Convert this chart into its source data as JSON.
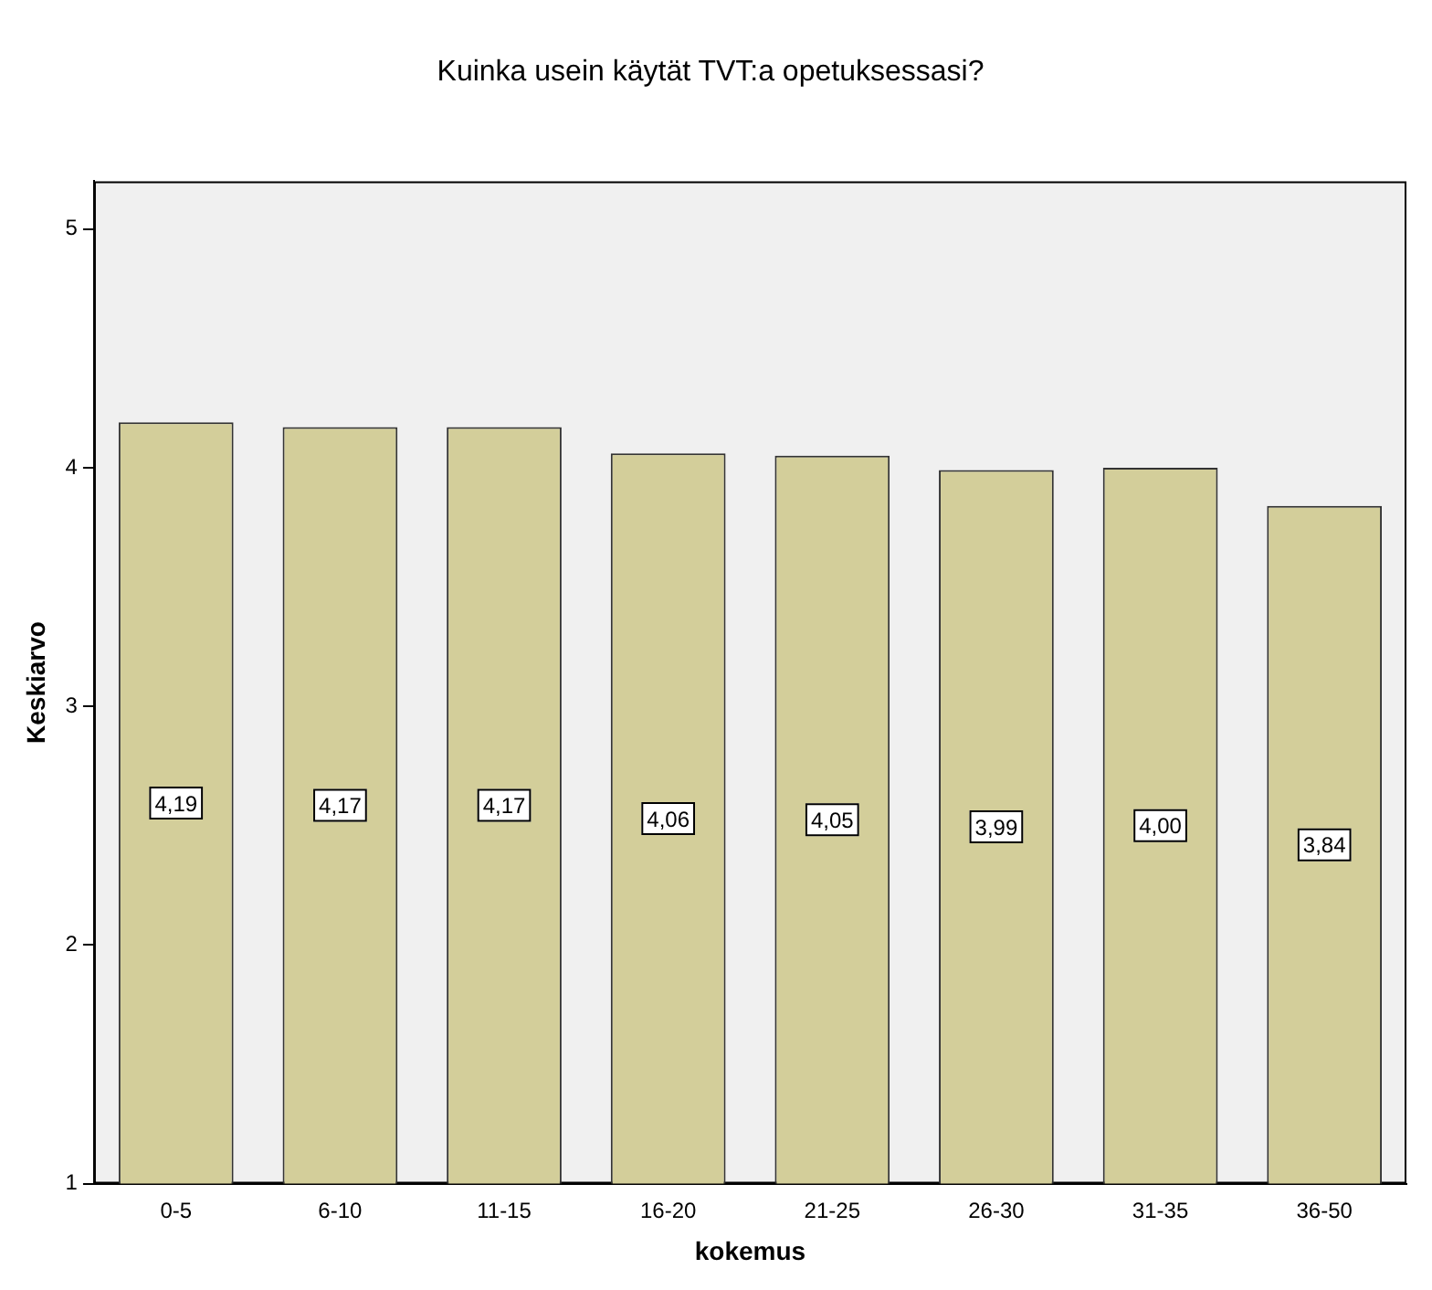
{
  "chart_data": {
    "type": "bar",
    "title": "Kuinka usein käytät TVT:a opetuksessasi?",
    "xlabel": "kokemus",
    "ylabel": "Keskiarvo",
    "categories": [
      "0-5",
      "6-10",
      "11-15",
      "16-20",
      "21-25",
      "26-30",
      "31-35",
      "36-50"
    ],
    "values": [
      4.19,
      4.17,
      4.17,
      4.06,
      4.05,
      3.99,
      4.0,
      3.84
    ],
    "value_labels": [
      "4,19",
      "4,17",
      "4,17",
      "4,06",
      "4,05",
      "3,99",
      "4,00",
      "3,84"
    ],
    "color": "#d3ce9a",
    "ylim": [
      1,
      5.2
    ],
    "yticks": [
      1,
      2,
      3,
      4,
      5
    ],
    "grid": false,
    "legend": false
  }
}
